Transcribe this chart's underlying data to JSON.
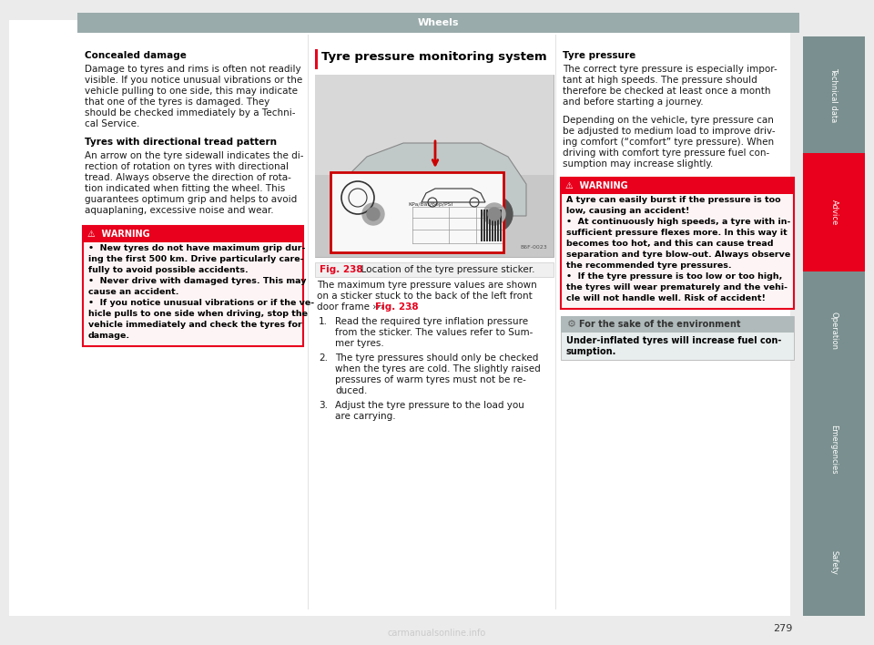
{
  "page_bg": "#ebebeb",
  "content_bg": "#ffffff",
  "header_bar_color": "#9aabab",
  "header_text": "Wheels",
  "header_text_color": "#ffffff",
  "sidebar_tabs": [
    {
      "label": "Technical data",
      "color": "#7a8f8f",
      "active": false
    },
    {
      "label": "Advice",
      "color": "#e8001c",
      "active": true
    },
    {
      "label": "Operation",
      "color": "#7a8f8f",
      "active": false
    },
    {
      "label": "Emergencies",
      "color": "#7a8f8f",
      "active": false
    },
    {
      "label": "Safety",
      "color": "#7a8f8f",
      "active": false
    }
  ],
  "page_number": "279",
  "col1_title": "Concealed damage",
  "col1_body": "Damage to tyres and rims is often not readily\nvisible. If you notice unusual vibrations or the\nvehicle pulling to one side, this may indicate\nthat one of the tyres is damaged. They\nshould be checked immediately by a Techni-\ncal Service.",
  "col1_subtitle": "Tyres with directional tread pattern",
  "col1_body2": "An arrow on the tyre sidewall indicates the di-\nrection of rotation on tyres with directional\ntread. Always observe the direction of rota-\ntion indicated when fitting the wheel. This\nguarantees optimum grip and helps to avoid\naquaplaning, excessive noise and wear.",
  "warning_header_text": "⚠  WARNING",
  "warning_text_col1_lines": [
    "•  New tyres do not have maximum grip dur-",
    "ing the first 500 km. Drive particularly care-",
    "fully to avoid possible accidents.",
    "•  Never drive with damaged tyres. This may",
    "cause an accident.",
    "•  If you notice unusual vibrations or if the ve-",
    "hicle pulls to one side when driving, stop the",
    "vehicle immediately and check the tyres for",
    "damage."
  ],
  "col2_title": "Tyre pressure monitoring system",
  "col2_fig_label": "Fig. 238",
  "col2_fig_rest": "  Location of the tyre pressure sticker.",
  "col2_body_lines": [
    "The maximum tyre pressure values are shown",
    "on a sticker stuck to the back of the left front",
    "door frame ››› Fig. 238."
  ],
  "col2_steps": [
    [
      "Read the required tyre inflation pressure",
      "from the sticker. The values refer to Sum-",
      "mer tyres."
    ],
    [
      "The tyre pressures should only be checked",
      "when the tyres are cold. The slightly raised",
      "pressures of warm tyres must not be re-",
      "duced."
    ],
    [
      "Adjust the tyre pressure to the load you",
      "are carrying."
    ]
  ],
  "col3_title": "Tyre pressure",
  "col3_body_lines": [
    "The correct tyre pressure is especially impor-",
    "tant at high speeds. The pressure should",
    "therefore be checked at least once a month",
    "and before starting a journey.",
    "",
    "Depending on the vehicle, tyre pressure can",
    "be adjusted to medium load to improve driv-",
    "ing comfort (“comfort” tyre pressure). When",
    "driving with comfort tyre pressure fuel con-",
    "sumption may increase slightly."
  ],
  "warning_col3_lines": [
    "A tyre can easily burst if the pressure is too",
    "low, causing an accident!",
    "•  At continuously high speeds, a tyre with in-",
    "sufficient pressure flexes more. In this way it",
    "becomes too hot, and this can cause tread",
    "separation and tyre blow-out. Always observe",
    "the recommended tyre pressures.",
    "•  If the tyre pressure is too low or too high,",
    "the tyres will wear prematurely and the vehi-",
    "cle will not handle well. Risk of accident!"
  ],
  "env_header": "For the sake of the environment",
  "env_body_lines": [
    "Under-inflated tyres will increase fuel con-",
    "sumption."
  ],
  "warning_border": "#e8001c",
  "warning_header_bg": "#e8001c",
  "env_bg": "#c8d0d0",
  "env_header_bg": "#b0baba",
  "text_color": "#1a1a1a",
  "bold_color": "#000000",
  "link_color": "#e8001c"
}
